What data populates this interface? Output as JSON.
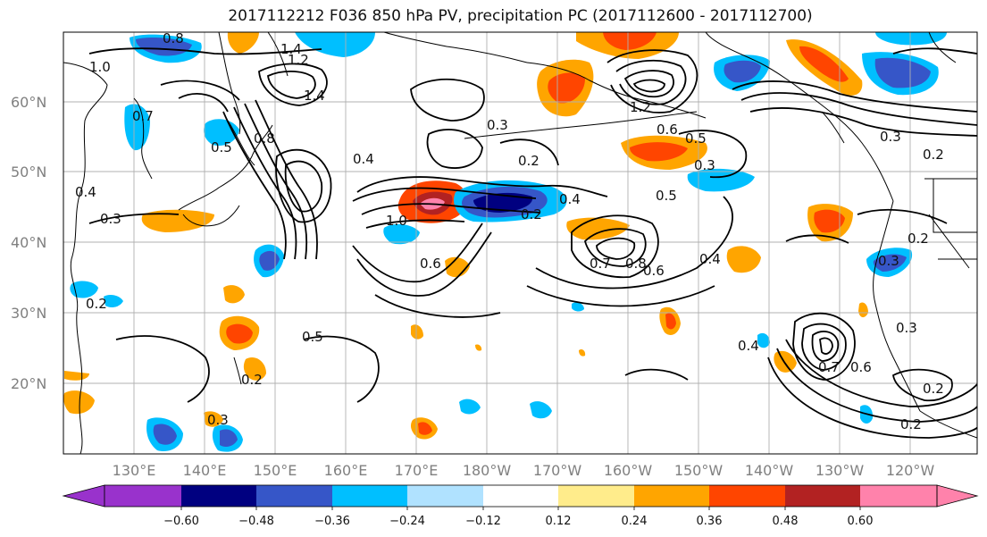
{
  "title": "2017112212 F036 850 hPa PV, precipitation PC (2017112600 - 2017112700)",
  "map": {
    "lat_ticks": [
      "60°N",
      "50°N",
      "40°N",
      "30°N",
      "20°N"
    ],
    "lon_ticks": [
      "130°E",
      "140°E",
      "150°E",
      "160°E",
      "170°E",
      "180°W",
      "170°W",
      "160°W",
      "150°W",
      "140°W",
      "130°W",
      "120°W"
    ],
    "contour_labels": [
      "1.4",
      "1.2",
      "1.4",
      "0.8",
      "1.0",
      "0.8",
      "0.7",
      "0.4",
      "0.3",
      "0.2",
      "0.5",
      "0.4",
      "0.3",
      "1.2",
      "0.6",
      "0.2",
      "1.0",
      "0.4",
      "0.3",
      "0.2",
      "0.5",
      "0.3",
      "0.5",
      "0.4",
      "0.2",
      "0.8",
      "0.6",
      "0.7",
      "0.6",
      "0.4",
      "0.3",
      "0.5",
      "0.2",
      "0.2",
      "0.3",
      "0.7",
      "0.6",
      "0.2",
      "0.3",
      "0.2"
    ],
    "colors": {
      "contour": "#000000",
      "grid": "#b0b0b0",
      "coast": "#000000"
    }
  },
  "colorbar": {
    "ticks": [
      "−0.60",
      "−0.48",
      "−0.36",
      "−0.24",
      "−0.12",
      "0.12",
      "0.24",
      "0.36",
      "0.48",
      "0.60"
    ],
    "bins": [
      "#9932cc",
      "#000080",
      "#3656c8",
      "#00bfff",
      "#b0e2ff",
      "#ffffff",
      "#ffec8b",
      "#ffa500",
      "#ff4500",
      "#b22222",
      "#ff82ab"
    ]
  }
}
